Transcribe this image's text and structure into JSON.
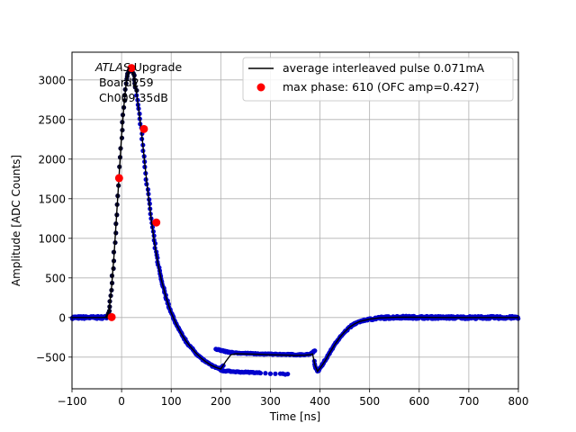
{
  "chart_data": {
    "type": "scatter",
    "xlabel": "Time [ns]",
    "ylabel": "Amplitude [ADC Counts]",
    "xlim": [
      -100,
      800
    ],
    "ylim": [
      -900,
      3350
    ],
    "xticks": [
      -100,
      0,
      100,
      200,
      300,
      400,
      500,
      600,
      700,
      800
    ],
    "yticks": [
      -500,
      0,
      500,
      1000,
      1500,
      2000,
      2500,
      3000
    ],
    "grid": true,
    "legend_position": "top-right",
    "annotation": {
      "line1_italic": "ATLAS",
      "line1_rest": " Upgrade",
      "line2": " Board259",
      "line3": " Ch009 35dB"
    },
    "legend": [
      {
        "label": "average interleaved pulse 0.071mA",
        "marker": "line",
        "color": "#000000"
      },
      {
        "label": "max phase: 610 (OFC amp=0.427)",
        "marker": "dot",
        "color": "#ff0000"
      }
    ],
    "colors": {
      "samples": "#0000cc",
      "average": "#000000",
      "max_phase": "#ff0000"
    },
    "average_pulse": {
      "x": [
        -100,
        -60,
        -40,
        -30,
        -25,
        -20,
        -15,
        -10,
        -5,
        0,
        5,
        10,
        15,
        20,
        25,
        30,
        35,
        40,
        45,
        50,
        55,
        60,
        65,
        70,
        75,
        80,
        85,
        90,
        95,
        100,
        110,
        120,
        130,
        140,
        150,
        160,
        170,
        180,
        190,
        200,
        210,
        220,
        230,
        250,
        280,
        300,
        330,
        350,
        370,
        380,
        385,
        390,
        395,
        400,
        410,
        420,
        430,
        440,
        450,
        460,
        470,
        480,
        500,
        520,
        540,
        560,
        580,
        600,
        650,
        700,
        750,
        800
      ],
      "y": [
        0,
        0,
        0,
        5,
        100,
        400,
        800,
        1300,
        1800,
        2300,
        2700,
        3000,
        3130,
        3150,
        3050,
        2850,
        2600,
        2350,
        2050,
        1750,
        1480,
        1230,
        1000,
        800,
        630,
        480,
        360,
        250,
        150,
        60,
        -80,
        -200,
        -300,
        -380,
        -450,
        -510,
        -560,
        -600,
        -630,
        -650,
        -555,
        -470,
        -458,
        -460,
        -465,
        -470,
        -475,
        -478,
        -475,
        -470,
        -460,
        -600,
        -680,
        -640,
        -550,
        -440,
        -340,
        -250,
        -180,
        -120,
        -80,
        -50,
        -20,
        -5,
        0,
        5,
        3,
        2,
        0,
        0,
        0,
        0
      ]
    },
    "sample_branch": {
      "upper": {
        "x": [
          190,
          200,
          210,
          220,
          240,
          260,
          280,
          300,
          320,
          340,
          360,
          380,
          390
        ],
        "y": [
          -400,
          -415,
          -430,
          -440,
          -450,
          -455,
          -460,
          -462,
          -465,
          -468,
          -470,
          -460,
          -420
        ]
      },
      "lower_tail": {
        "x": [
          200,
          210,
          220,
          230,
          240,
          250,
          260,
          270,
          280,
          300,
          320,
          330,
          340
        ],
        "y": [
          -670,
          -675,
          -680,
          -685,
          -688,
          -690,
          -692,
          -695,
          -698,
          -705,
          -710,
          -715,
          -720
        ]
      }
    },
    "max_phase_points": {
      "x": [
        -20,
        -5,
        20,
        45,
        70
      ],
      "y": [
        5,
        1760,
        3150,
        2380,
        1200
      ]
    }
  }
}
